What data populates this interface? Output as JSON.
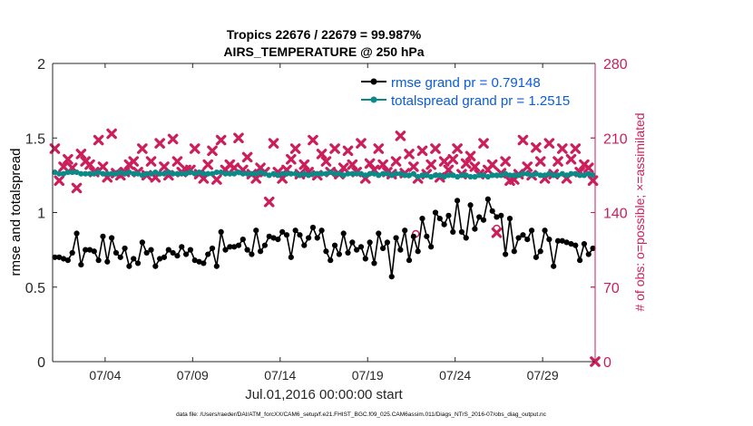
{
  "chart_data": {
    "type": "line",
    "title": "Tropics 22676 / 22679 = 99.987%",
    "subtitle": "AIRS_TEMPERATURE @ 250 hPa",
    "xlabel": "Jul.01,2016 00:00:00 start",
    "ylabel_left": "rmse and totalspread",
    "ylabel_right": "# of obs: o=possible; ×=assimilated",
    "footnote": "data file: /Users/raeder/DAI/ATM_forcXX/CAM6_setup/f.e21.FHIST_BGC.f09_025.CAM6assim.011/Diags_NTrS_2016-07/obs_diag_output.nc",
    "xlim": [
      1,
      32
    ],
    "ylim_left": [
      0,
      2
    ],
    "ylim_right": [
      0,
      280
    ],
    "x_ticks": [
      4,
      9,
      14,
      19,
      24,
      29
    ],
    "x_tick_labels": [
      "07/04",
      "07/09",
      "07/14",
      "07/19",
      "07/24",
      "07/29"
    ],
    "y_left_ticks": [
      0,
      0.5,
      1,
      1.5,
      2
    ],
    "y_left_tick_labels": [
      "0",
      "0.5",
      "1",
      "1.5",
      "2"
    ],
    "y_right_ticks": [
      0,
      70,
      140,
      210,
      280
    ],
    "y_right_tick_labels": [
      "0",
      "70",
      "140",
      "210",
      "280"
    ],
    "legend": [
      {
        "label": "rmse grand pr = 0.79148",
        "color": "#000000"
      },
      {
        "label": "totalspread grand pr = 1.2515",
        "color": "#0b8a8a"
      }
    ],
    "colors": {
      "rmse": "#000000",
      "spread": "#0b8a8a",
      "obs": "#cc1e5a"
    },
    "rmse": [
      [
        1.125,
        0.7
      ],
      [
        1.375,
        0.7
      ],
      [
        1.625,
        0.69
      ],
      [
        1.875,
        0.68
      ],
      [
        2.125,
        0.73
      ],
      [
        2.375,
        0.86
      ],
      [
        2.625,
        0.65
      ],
      [
        2.875,
        0.75
      ],
      [
        3.125,
        0.75
      ],
      [
        3.375,
        0.74
      ],
      [
        3.625,
        0.68
      ],
      [
        3.875,
        0.84
      ],
      [
        4.125,
        0.67
      ],
      [
        4.375,
        0.83
      ],
      [
        4.625,
        0.73
      ],
      [
        4.875,
        0.7
      ],
      [
        5.125,
        0.76
      ],
      [
        5.375,
        0.64
      ],
      [
        5.625,
        0.69
      ],
      [
        5.875,
        0.66
      ],
      [
        6.125,
        0.8
      ],
      [
        6.375,
        0.73
      ],
      [
        6.625,
        0.75
      ],
      [
        6.875,
        0.64
      ],
      [
        7.125,
        0.69
      ],
      [
        7.375,
        0.7
      ],
      [
        7.625,
        0.75
      ],
      [
        7.875,
        0.73
      ],
      [
        8.125,
        0.71
      ],
      [
        8.375,
        0.77
      ],
      [
        8.625,
        0.72
      ],
      [
        8.875,
        0.75
      ],
      [
        9.125,
        0.68
      ],
      [
        9.375,
        0.67
      ],
      [
        9.625,
        0.66
      ],
      [
        9.875,
        0.72
      ],
      [
        10.125,
        0.76
      ],
      [
        10.375,
        0.64
      ],
      [
        10.625,
        0.87
      ],
      [
        10.875,
        0.75
      ],
      [
        11.125,
        0.77
      ],
      [
        11.375,
        0.77
      ],
      [
        11.625,
        0.78
      ],
      [
        11.875,
        0.82
      ],
      [
        12.125,
        0.75
      ],
      [
        12.375,
        0.72
      ],
      [
        12.625,
        0.88
      ],
      [
        12.875,
        0.74
      ],
      [
        13.125,
        0.78
      ],
      [
        13.375,
        0.84
      ],
      [
        13.625,
        0.83
      ],
      [
        13.875,
        0.82
      ],
      [
        14.125,
        0.87
      ],
      [
        14.375,
        0.85
      ],
      [
        14.625,
        0.7
      ],
      [
        14.875,
        0.88
      ],
      [
        15.125,
        0.85
      ],
      [
        15.375,
        0.78
      ],
      [
        15.625,
        0.83
      ],
      [
        15.875,
        0.9
      ],
      [
        16.125,
        0.83
      ],
      [
        16.375,
        0.88
      ],
      [
        16.625,
        0.74
      ],
      [
        16.875,
        0.68
      ],
      [
        17.125,
        0.78
      ],
      [
        17.375,
        0.72
      ],
      [
        17.625,
        0.86
      ],
      [
        17.875,
        0.73
      ],
      [
        18.125,
        0.8
      ],
      [
        18.375,
        0.75
      ],
      [
        18.625,
        0.77
      ],
      [
        18.875,
        0.69
      ],
      [
        19.125,
        0.8
      ],
      [
        19.375,
        0.66
      ],
      [
        19.625,
        0.86
      ],
      [
        19.875,
        0.76
      ],
      [
        20.125,
        0.8
      ],
      [
        20.375,
        0.57
      ],
      [
        20.625,
        0.83
      ],
      [
        20.875,
        0.75
      ],
      [
        21.125,
        0.88
      ],
      [
        21.375,
        0.68
      ],
      [
        21.625,
        0.84
      ],
      [
        21.875,
        0.74
      ],
      [
        22.125,
        0.96
      ],
      [
        22.375,
        0.84
      ],
      [
        22.625,
        0.77
      ],
      [
        22.875,
        1.0
      ],
      [
        23.125,
        0.96
      ],
      [
        23.375,
        0.92
      ],
      [
        23.625,
        0.98
      ],
      [
        23.875,
        0.87
      ],
      [
        24.125,
        1.08
      ],
      [
        24.375,
        0.87
      ],
      [
        24.625,
        0.83
      ],
      [
        24.875,
        1.05
      ],
      [
        25.125,
        0.89
      ],
      [
        25.375,
        0.97
      ],
      [
        25.625,
        0.95
      ],
      [
        25.875,
        1.09
      ],
      [
        26.125,
        1.01
      ],
      [
        26.375,
        0.97
      ],
      [
        26.625,
        0.98
      ],
      [
        26.875,
        0.72
      ],
      [
        27.125,
        0.96
      ],
      [
        27.375,
        0.74
      ],
      [
        27.625,
        0.83
      ],
      [
        27.875,
        0.85
      ],
      [
        28.125,
        0.82
      ],
      [
        28.375,
        0.88
      ],
      [
        28.625,
        0.7
      ],
      [
        28.875,
        0.74
      ],
      [
        29.125,
        0.88
      ],
      [
        29.375,
        0.82
      ],
      [
        29.625,
        0.64
      ],
      [
        29.875,
        0.81
      ],
      [
        30.125,
        0.81
      ],
      [
        30.375,
        0.8
      ],
      [
        30.625,
        0.79
      ],
      [
        30.875,
        0.78
      ],
      [
        31.125,
        0.68
      ],
      [
        31.375,
        0.79
      ],
      [
        31.625,
        0.72
      ],
      [
        31.875,
        0.76
      ]
    ],
    "totalspread_mean": 1.2515,
    "totalspread": [
      [
        1.125,
        1.27
      ],
      [
        1.375,
        1.26
      ],
      [
        1.625,
        1.26
      ],
      [
        1.875,
        1.27
      ],
      [
        2.125,
        1.27
      ],
      [
        2.375,
        1.27
      ],
      [
        2.625,
        1.26
      ],
      [
        2.875,
        1.26
      ],
      [
        3.125,
        1.26
      ],
      [
        3.375,
        1.26
      ],
      [
        3.625,
        1.27
      ],
      [
        3.875,
        1.26
      ],
      [
        4.125,
        1.26
      ],
      [
        4.375,
        1.26
      ],
      [
        4.625,
        1.26
      ],
      [
        4.875,
        1.27
      ],
      [
        5.125,
        1.26
      ],
      [
        5.375,
        1.27
      ],
      [
        5.625,
        1.26
      ],
      [
        5.875,
        1.26
      ],
      [
        6.125,
        1.25
      ],
      [
        6.375,
        1.26
      ],
      [
        6.625,
        1.26
      ],
      [
        6.875,
        1.27
      ],
      [
        7.125,
        1.26
      ],
      [
        7.375,
        1.26
      ],
      [
        7.625,
        1.27
      ],
      [
        7.875,
        1.26
      ],
      [
        8.125,
        1.26
      ],
      [
        8.375,
        1.26
      ],
      [
        8.625,
        1.26
      ],
      [
        8.875,
        1.27
      ],
      [
        9.125,
        1.26
      ],
      [
        9.375,
        1.27
      ],
      [
        9.625,
        1.26
      ],
      [
        9.875,
        1.26
      ],
      [
        10.125,
        1.26
      ],
      [
        10.375,
        1.27
      ],
      [
        10.625,
        1.27
      ],
      [
        10.875,
        1.26
      ],
      [
        11.125,
        1.26
      ],
      [
        11.375,
        1.26
      ],
      [
        11.625,
        1.27
      ],
      [
        11.875,
        1.26
      ],
      [
        12.125,
        1.26
      ],
      [
        12.375,
        1.26
      ],
      [
        12.625,
        1.26
      ],
      [
        12.875,
        1.27
      ],
      [
        13.125,
        1.26
      ],
      [
        13.375,
        1.25
      ],
      [
        13.625,
        1.26
      ],
      [
        13.875,
        1.25
      ],
      [
        14.125,
        1.26
      ],
      [
        14.375,
        1.26
      ],
      [
        14.625,
        1.26
      ],
      [
        14.875,
        1.26
      ],
      [
        15.125,
        1.25
      ],
      [
        15.375,
        1.26
      ],
      [
        15.625,
        1.25
      ],
      [
        15.875,
        1.26
      ],
      [
        16.125,
        1.26
      ],
      [
        16.375,
        1.26
      ],
      [
        16.625,
        1.26
      ],
      [
        16.875,
        1.27
      ],
      [
        17.125,
        1.26
      ],
      [
        17.375,
        1.26
      ],
      [
        17.625,
        1.25
      ],
      [
        17.875,
        1.26
      ],
      [
        18.125,
        1.26
      ],
      [
        18.375,
        1.26
      ],
      [
        18.625,
        1.26
      ],
      [
        18.875,
        1.25
      ],
      [
        19.125,
        1.26
      ],
      [
        19.375,
        1.26
      ],
      [
        19.625,
        1.25
      ],
      [
        19.875,
        1.26
      ],
      [
        20.125,
        1.26
      ],
      [
        20.375,
        1.25
      ],
      [
        20.625,
        1.26
      ],
      [
        20.875,
        1.26
      ],
      [
        21.125,
        1.25
      ],
      [
        21.375,
        1.25
      ],
      [
        21.625,
        1.26
      ],
      [
        21.875,
        1.24
      ],
      [
        22.125,
        1.25
      ],
      [
        22.375,
        1.25
      ],
      [
        22.625,
        1.24
      ],
      [
        22.875,
        1.25
      ],
      [
        23.125,
        1.25
      ],
      [
        23.375,
        1.24
      ],
      [
        23.625,
        1.25
      ],
      [
        23.875,
        1.25
      ],
      [
        24.125,
        1.24
      ],
      [
        24.375,
        1.25
      ],
      [
        24.625,
        1.25
      ],
      [
        24.875,
        1.24
      ],
      [
        25.125,
        1.24
      ],
      [
        25.375,
        1.25
      ],
      [
        25.625,
        1.25
      ],
      [
        25.875,
        1.24
      ],
      [
        26.125,
        1.25
      ],
      [
        26.375,
        1.25
      ],
      [
        26.625,
        1.25
      ],
      [
        26.875,
        1.26
      ],
      [
        27.125,
        1.25
      ],
      [
        27.375,
        1.25
      ],
      [
        27.625,
        1.25
      ],
      [
        27.875,
        1.26
      ],
      [
        28.125,
        1.26
      ],
      [
        28.375,
        1.25
      ],
      [
        28.625,
        1.26
      ],
      [
        28.875,
        1.25
      ],
      [
        29.125,
        1.25
      ],
      [
        29.375,
        1.26
      ],
      [
        29.625,
        1.25
      ],
      [
        29.875,
        1.25
      ],
      [
        30.125,
        1.26
      ],
      [
        30.375,
        1.25
      ],
      [
        30.625,
        1.26
      ],
      [
        30.875,
        1.26
      ],
      [
        31.125,
        1.25
      ],
      [
        31.375,
        1.25
      ],
      [
        31.625,
        1.26
      ],
      [
        31.875,
        1.25
      ]
    ],
    "obs_assimilated": [
      [
        1.125,
        200
      ],
      [
        1.375,
        170
      ],
      [
        1.625,
        183
      ],
      [
        1.875,
        190
      ],
      [
        2.125,
        182
      ],
      [
        2.375,
        163
      ],
      [
        2.625,
        195
      ],
      [
        2.875,
        188
      ],
      [
        3.125,
        185
      ],
      [
        3.375,
        178
      ],
      [
        3.625,
        208
      ],
      [
        3.875,
        183
      ],
      [
        4.125,
        173
      ],
      [
        4.375,
        214
      ],
      [
        4.625,
        177
      ],
      [
        4.875,
        175
      ],
      [
        5.125,
        178
      ],
      [
        5.375,
        185
      ],
      [
        5.625,
        188
      ],
      [
        5.875,
        178
      ],
      [
        6.125,
        200
      ],
      [
        6.375,
        175
      ],
      [
        6.625,
        188
      ],
      [
        6.875,
        173
      ],
      [
        7.125,
        205
      ],
      [
        7.375,
        183
      ],
      [
        7.625,
        175
      ],
      [
        7.875,
        209
      ],
      [
        8.125,
        188
      ],
      [
        8.375,
        178
      ],
      [
        8.625,
        180
      ],
      [
        8.875,
        180
      ],
      [
        9.125,
        200
      ],
      [
        9.375,
        176
      ],
      [
        9.625,
        172
      ],
      [
        9.875,
        185
      ],
      [
        10.125,
        198
      ],
      [
        10.375,
        171
      ],
      [
        10.625,
        208
      ],
      [
        10.875,
        180
      ],
      [
        11.125,
        185
      ],
      [
        11.375,
        182
      ],
      [
        11.625,
        210
      ],
      [
        11.875,
        180
      ],
      [
        12.125,
        192
      ],
      [
        12.375,
        176
      ],
      [
        12.625,
        172
      ],
      [
        12.875,
        182
      ],
      [
        13.125,
        178
      ],
      [
        13.375,
        150
      ],
      [
        13.625,
        205
      ],
      [
        13.875,
        178
      ],
      [
        14.125,
        172
      ],
      [
        14.375,
        180
      ],
      [
        14.625,
        190
      ],
      [
        14.875,
        200
      ],
      [
        15.125,
        176
      ],
      [
        15.375,
        185
      ],
      [
        15.625,
        178
      ],
      [
        15.875,
        208
      ],
      [
        16.125,
        175
      ],
      [
        16.375,
        195
      ],
      [
        16.625,
        188
      ],
      [
        16.875,
        178
      ],
      [
        17.125,
        200
      ],
      [
        17.375,
        176
      ],
      [
        17.625,
        182
      ],
      [
        17.875,
        198
      ],
      [
        18.125,
        185
      ],
      [
        18.375,
        178
      ],
      [
        18.625,
        205
      ],
      [
        18.875,
        172
      ],
      [
        19.125,
        186
      ],
      [
        19.375,
        180
      ],
      [
        19.625,
        200
      ],
      [
        19.875,
        185
      ],
      [
        20.125,
        178
      ],
      [
        20.375,
        176
      ],
      [
        20.625,
        188
      ],
      [
        20.875,
        212
      ],
      [
        21.125,
        177
      ],
      [
        21.375,
        195
      ],
      [
        21.625,
        183
      ],
      [
        21.875,
        172
      ],
      [
        22.125,
        198
      ],
      [
        22.375,
        176
      ],
      [
        22.625,
        185
      ],
      [
        22.875,
        200
      ],
      [
        23.125,
        173
      ],
      [
        23.375,
        188
      ],
      [
        23.625,
        180
      ],
      [
        23.875,
        190
      ],
      [
        24.125,
        200
      ],
      [
        24.375,
        176
      ],
      [
        24.625,
        186
      ],
      [
        24.875,
        193
      ],
      [
        25.125,
        183
      ],
      [
        25.375,
        176
      ],
      [
        25.625,
        205
      ],
      [
        25.875,
        180
      ],
      [
        26.125,
        185
      ],
      [
        26.375,
        121
      ],
      [
        26.625,
        177
      ],
      [
        26.875,
        188
      ],
      [
        27.125,
        170
      ],
      [
        27.375,
        171
      ],
      [
        27.625,
        176
      ],
      [
        27.875,
        208
      ],
      [
        28.125,
        183
      ],
      [
        28.375,
        175
      ],
      [
        28.625,
        201
      ],
      [
        28.875,
        188
      ],
      [
        29.125,
        172
      ],
      [
        29.375,
        205
      ],
      [
        29.625,
        176
      ],
      [
        29.875,
        188
      ],
      [
        30.125,
        200
      ],
      [
        30.375,
        172
      ],
      [
        30.625,
        190
      ],
      [
        30.875,
        200
      ],
      [
        31.125,
        178
      ],
      [
        31.375,
        185
      ],
      [
        31.625,
        182
      ],
      [
        31.875,
        170
      ],
      [
        32.0,
        0
      ]
    ],
    "obs_possible": [
      [
        21.75,
        120
      ],
      [
        26.375,
        125
      ]
    ]
  }
}
